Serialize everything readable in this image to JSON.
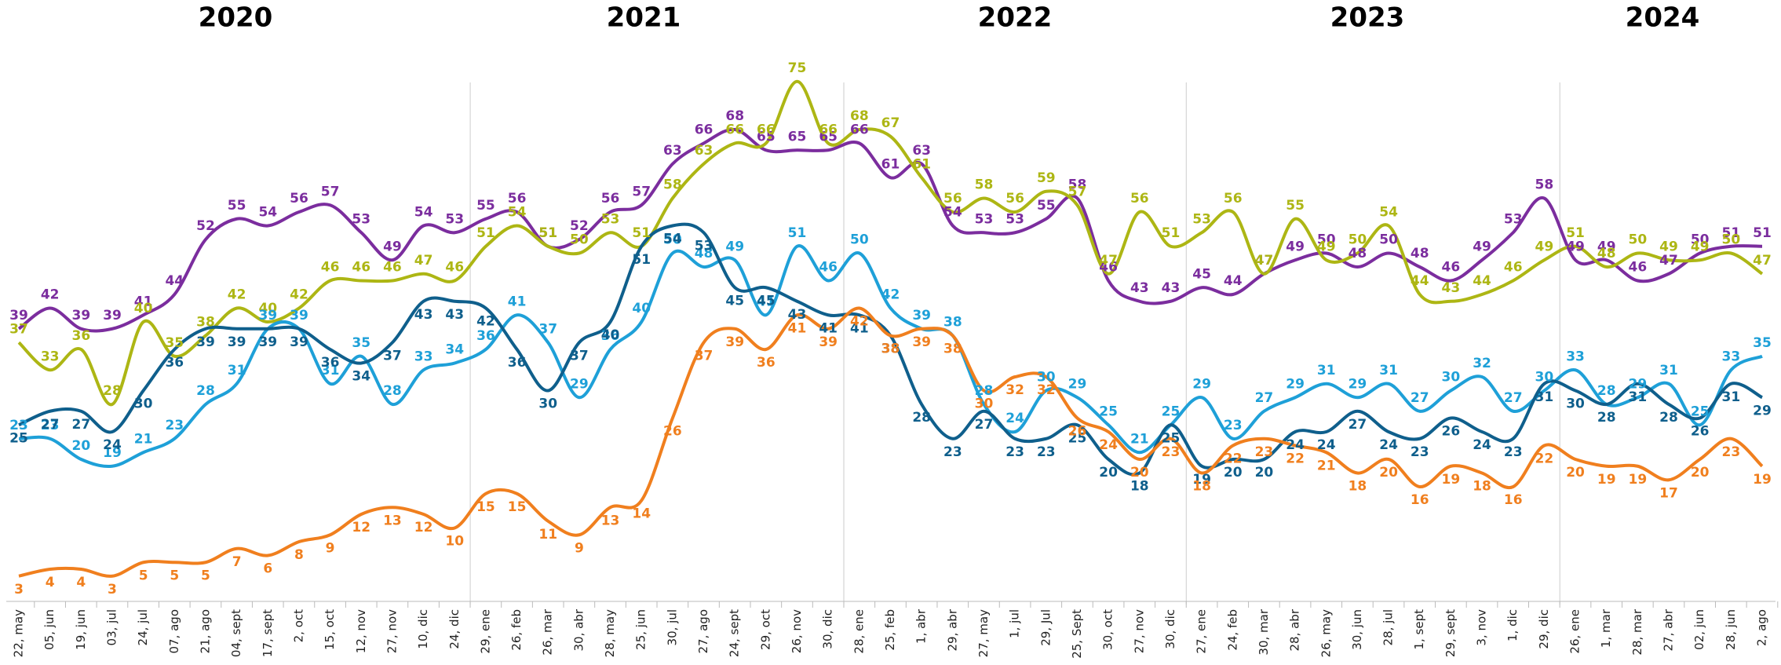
{
  "chart_data": {
    "type": "line",
    "years": [
      "2020",
      "2021",
      "2022",
      "2023",
      "2024"
    ],
    "categories": [
      "22, may",
      "05, jun",
      "19, jun",
      "03, jul",
      "24, jul",
      "07, ago",
      "21, ago",
      "04, sept",
      "17, sept",
      "2, oct",
      "15, oct",
      "12, nov",
      "27, nov",
      "10, dic",
      "24, dic",
      "29, ene",
      "26, feb",
      "26, mar",
      "30, abr",
      "28, may",
      "25, jun",
      "30, jul",
      "27, ago",
      "24, sept",
      "29, oct",
      "26, nov",
      "30, dic",
      "28, ene",
      "25, feb",
      "1, abr",
      "29, abr",
      "27, may",
      "1, jul",
      "29, Jul",
      "25, Sept",
      "30, oct",
      "27, nov",
      "30, dic",
      "27, ene",
      "24, feb",
      "30, mar",
      "28, abr",
      "26, may",
      "30, jun",
      "28, jul",
      "1, sept",
      "29, sept",
      "3, nov",
      "1, dic",
      "29, dic",
      "26, ene",
      "1, mar",
      "28, mar",
      "27, abr",
      "02, jun",
      "28, jun",
      "2, ago"
    ],
    "ylim": [
      0,
      80
    ],
    "series": [
      {
        "color": "#7b2d9e",
        "values": [
          39,
          42,
          39,
          39,
          41,
          44,
          52,
          55,
          54,
          56,
          57,
          53,
          49,
          54,
          53,
          55,
          56,
          51,
          52,
          56,
          57,
          63,
          66,
          68,
          65,
          65,
          65,
          66,
          61,
          63,
          54,
          53,
          53,
          55,
          58,
          46,
          43,
          43,
          45,
          44,
          47,
          49,
          50,
          48,
          50,
          48,
          46,
          49,
          53,
          58,
          49,
          49,
          46,
          47,
          50,
          51,
          51
        ]
      },
      {
        "color": "#adb614",
        "values": [
          37,
          33,
          36,
          28,
          40,
          35,
          38,
          42,
          40,
          42,
          46,
          46,
          46,
          47,
          46,
          51,
          54,
          51,
          50,
          53,
          51,
          58,
          63,
          66,
          66,
          75,
          66,
          68,
          67,
          61,
          56,
          58,
          56,
          59,
          57,
          47,
          56,
          51,
          53,
          56,
          47,
          55,
          49,
          50,
          54,
          44,
          43,
          44,
          46,
          49,
          51,
          48,
          50,
          49,
          49,
          50,
          47
        ]
      },
      {
        "color": "#1ea0d8",
        "values": [
          23,
          23,
          20,
          19,
          21,
          23,
          28,
          31,
          39,
          39,
          31,
          35,
          28,
          33,
          34,
          36,
          41,
          37,
          29,
          36,
          40,
          50,
          48,
          49,
          41,
          51,
          46,
          50,
          42,
          39,
          38,
          28,
          24,
          30,
          29,
          25,
          21,
          25,
          29,
          23,
          27,
          29,
          31,
          29,
          31,
          27,
          30,
          32,
          27,
          30,
          33,
          28,
          29,
          31,
          25,
          33,
          35
        ]
      },
      {
        "color": "#0f5f8c",
        "values": [
          25,
          27,
          27,
          24,
          30,
          36,
          39,
          39,
          39,
          39,
          36,
          34,
          37,
          43,
          43,
          42,
          36,
          30,
          37,
          40,
          51,
          54,
          53,
          45,
          45,
          43,
          41,
          41,
          38,
          28,
          23,
          27,
          23,
          23,
          25,
          20,
          18,
          25,
          19,
          20,
          20,
          24,
          24,
          27,
          24,
          23,
          26,
          24,
          23,
          31,
          30,
          28,
          31,
          28,
          26,
          31,
          29
        ]
      },
      {
        "color": "#f07f1e",
        "values": [
          3,
          4,
          4,
          3,
          5,
          5,
          5,
          7,
          6,
          8,
          9,
          12,
          13,
          12,
          10,
          15,
          15,
          11,
          9,
          13,
          14,
          26,
          37,
          39,
          36,
          41,
          39,
          42,
          38,
          39,
          38,
          30,
          32,
          32,
          26,
          24,
          20,
          23,
          18,
          22,
          23,
          22,
          21,
          18,
          20,
          16,
          19,
          18,
          16,
          22,
          20,
          19,
          19,
          17,
          20,
          23,
          19
        ]
      }
    ]
  }
}
